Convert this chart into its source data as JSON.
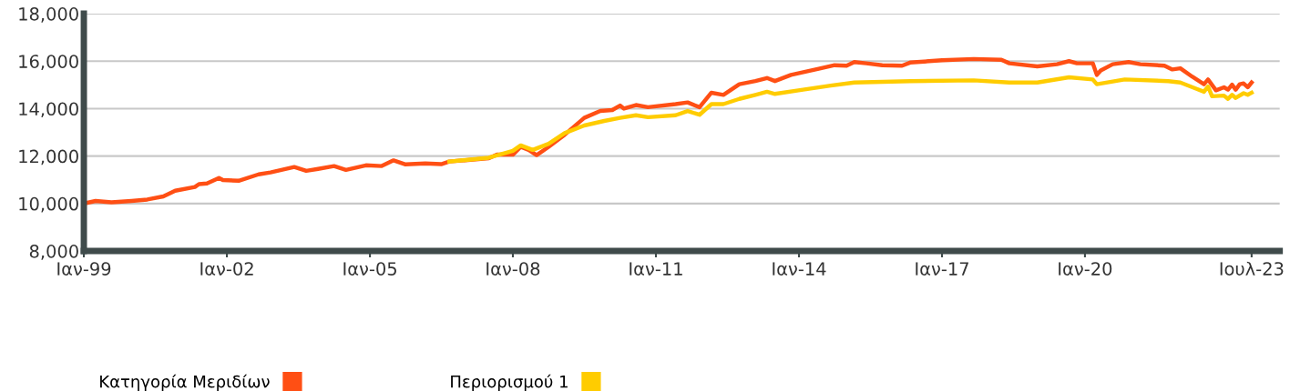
{
  "chart_data": {
    "type": "line",
    "ylim": [
      8000,
      18000
    ],
    "yticks": [
      {
        "value": 8000,
        "label": "8,000"
      },
      {
        "value": 10000,
        "label": "10,000"
      },
      {
        "value": 12000,
        "label": "12,000"
      },
      {
        "value": 14000,
        "label": "14,000"
      },
      {
        "value": 16000,
        "label": "16,000"
      },
      {
        "value": 18000,
        "label": "18,000"
      }
    ],
    "xlim": [
      "1999-01",
      "2024-02"
    ],
    "xticks": [
      {
        "value": "1999-01",
        "label": "Ιαν-99"
      },
      {
        "value": "2002-01",
        "label": "Ιαν-02"
      },
      {
        "value": "2005-01",
        "label": "Ιαν-05"
      },
      {
        "value": "2008-01",
        "label": "Ιαν-08"
      },
      {
        "value": "2011-01",
        "label": "Ιαν-11"
      },
      {
        "value": "2014-01",
        "label": "Ιαν-14"
      },
      {
        "value": "2017-01",
        "label": "Ιαν-17"
      },
      {
        "value": "2020-01",
        "label": "Ιαν-20"
      },
      {
        "value": "2023-07",
        "label": "Ιουλ-23"
      }
    ],
    "grid": "y",
    "legend": "bottom",
    "marker": "none",
    "line_style": "solid",
    "series": [
      {
        "name": "Κατηγορία Μεριδίων",
        "color": "#ff4f14",
        "x": [
          "1999-01",
          "1999-04",
          "1999-08",
          "2000-01",
          "2000-05",
          "2000-09",
          "2000-12",
          "2001-05",
          "2001-06",
          "2001-08",
          "2001-11",
          "2001-12",
          "2002-04",
          "2002-09",
          "2002-12",
          "2003-06",
          "2003-09",
          "2003-12",
          "2004-04",
          "2004-07",
          "2004-12",
          "2005-04",
          "2005-07",
          "2005-10",
          "2006-03",
          "2006-07",
          "2006-09",
          "2007-07",
          "2007-09",
          "2008-01",
          "2008-03",
          "2008-05",
          "2008-07",
          "2008-10",
          "2009-02",
          "2009-07",
          "2009-11",
          "2010-02",
          "2010-04",
          "2010-05",
          "2010-08",
          "2010-11",
          "2011-06",
          "2011-09",
          "2011-12",
          "2012-03",
          "2012-06",
          "2012-10",
          "2013-02",
          "2013-05",
          "2013-07",
          "2013-11",
          "2014-06",
          "2014-10",
          "2015-01",
          "2015-03",
          "2015-06",
          "2015-10",
          "2016-03",
          "2016-05",
          "2017-01",
          "2017-09",
          "2018-04",
          "2018-06",
          "2019-01",
          "2019-06",
          "2019-09",
          "2019-11",
          "2020-03",
          "2020-04",
          "2020-05",
          "2020-08",
          "2020-12",
          "2021-03",
          "2021-09",
          "2021-11",
          "2022-01",
          "2022-04",
          "2022-07",
          "2022-08",
          "2022-10",
          "2022-12",
          "2023-01",
          "2023-02",
          "2023-03",
          "2023-04",
          "2023-05",
          "2023-06",
          "2023-07"
        ],
        "values": [
          10000,
          10110,
          10050,
          10110,
          10170,
          10300,
          10540,
          10700,
          10820,
          10850,
          11080,
          10990,
          10960,
          11230,
          11310,
          11540,
          11380,
          11460,
          11580,
          11420,
          11610,
          11580,
          11820,
          11650,
          11690,
          11660,
          11770,
          11910,
          12060,
          12060,
          12390,
          12260,
          12040,
          12390,
          12900,
          13610,
          13900,
          13940,
          14130,
          14000,
          14150,
          14060,
          14190,
          14260,
          14060,
          14670,
          14580,
          15030,
          15160,
          15290,
          15160,
          15420,
          15680,
          15830,
          15810,
          15960,
          15910,
          15830,
          15810,
          15940,
          16040,
          16090,
          16060,
          15910,
          15780,
          15870,
          16000,
          15910,
          15910,
          15420,
          15610,
          15870,
          15960,
          15870,
          15810,
          15650,
          15700,
          15350,
          15030,
          15230,
          14770,
          14900,
          14800,
          15010,
          14800,
          15030,
          15060,
          14900,
          15100
        ]
      },
      {
        "name": "Περιορισμού 1",
        "color": "#ffcc00",
        "x": [
          "2006-09",
          "2007-07",
          "2008-01",
          "2008-03",
          "2008-06",
          "2008-10",
          "2009-02",
          "2009-07",
          "2009-12",
          "2010-04",
          "2010-08",
          "2010-11",
          "2011-06",
          "2011-09",
          "2011-12",
          "2012-03",
          "2012-06",
          "2012-10",
          "2013-02",
          "2013-05",
          "2013-07",
          "2014-02",
          "2014-09",
          "2015-03",
          "2016-05",
          "2017-09",
          "2018-06",
          "2019-01",
          "2019-09",
          "2020-03",
          "2020-04",
          "2020-11",
          "2021-10",
          "2022-01",
          "2022-05",
          "2022-07",
          "2022-08",
          "2022-09",
          "2022-12",
          "2023-01",
          "2023-02",
          "2023-03",
          "2023-05",
          "2023-06",
          "2023-07"
        ],
        "values": [
          11770,
          11930,
          12220,
          12450,
          12260,
          12520,
          12970,
          13290,
          13480,
          13610,
          13720,
          13640,
          13720,
          13900,
          13740,
          14190,
          14190,
          14410,
          14580,
          14710,
          14620,
          14800,
          14970,
          15100,
          15160,
          15190,
          15100,
          15100,
          15320,
          15230,
          15030,
          15230,
          15160,
          15100,
          14840,
          14710,
          14930,
          14520,
          14550,
          14410,
          14580,
          14450,
          14650,
          14580,
          14670
        ]
      }
    ]
  }
}
